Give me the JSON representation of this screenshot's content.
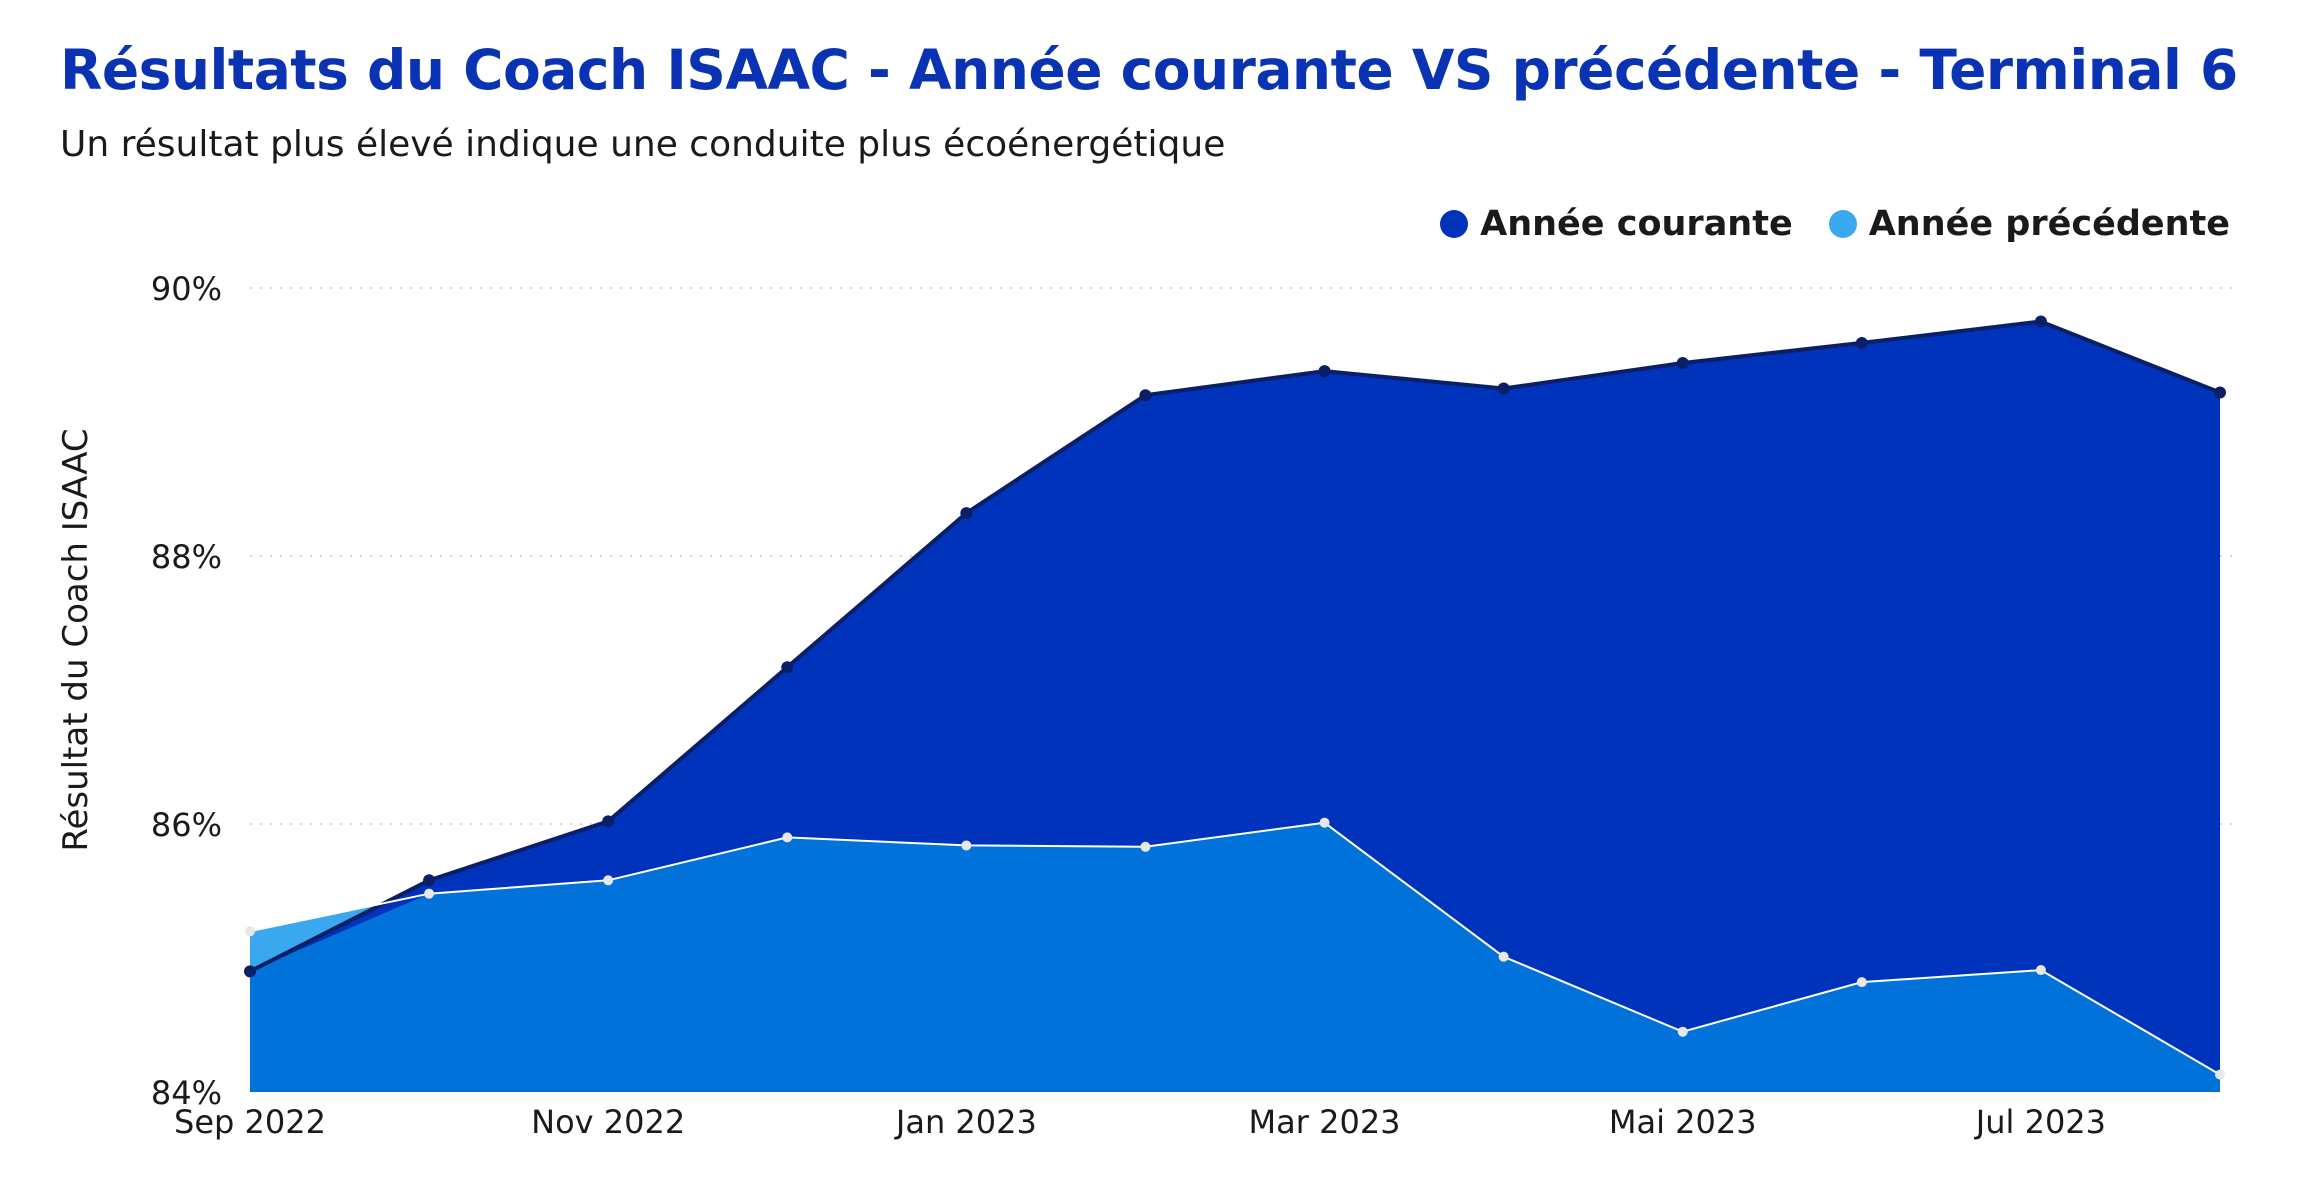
{
  "title": "Résultats du Coach ISAAC - Année courante VS précédente - Terminal 6",
  "subtitle": "Un résultat plus élevé indique une conduite plus écoénergétique",
  "colors": {
    "current_fill": "#0033BB",
    "current_line": "#0B1F66",
    "previous_fill": "#0272DB",
    "previous_fill_above": "#3AA8EE",
    "previous_line": "#FFFFFF",
    "legend_current": "#0033BB",
    "legend_previous": "#3AA8EE",
    "title": "#0A33B3"
  },
  "chart_data": {
    "type": "area",
    "ylabel": "Résultat du Coach ISAAC",
    "xlabel": "",
    "ylim": [
      84,
      90
    ],
    "yticks": [
      "84%",
      "86%",
      "88%",
      "90%"
    ],
    "ytick_values": [
      84,
      86,
      88,
      90
    ],
    "x": [
      "Sep 2022",
      "Oct 2022",
      "Nov 2022",
      "Dec 2022",
      "Jan 2023",
      "Feb 2023",
      "Mar 2023",
      "Apr 2023",
      "May 2023",
      "Jun 2023",
      "Jul 2023",
      "Aug 2023"
    ],
    "xtick_labels": [
      {
        "index": 0,
        "label": "Sep 2022"
      },
      {
        "index": 2,
        "label": "Nov 2022"
      },
      {
        "index": 4,
        "label": "Jan 2023"
      },
      {
        "index": 6,
        "label": "Mar 2023"
      },
      {
        "index": 8,
        "label": "Mai 2023"
      },
      {
        "index": 10,
        "label": "Jul 2023"
      }
    ],
    "series": [
      {
        "name": "Année courante",
        "values": [
          84.9,
          85.58,
          86.02,
          87.17,
          88.32,
          89.2,
          89.38,
          89.25,
          89.44,
          89.59,
          89.75,
          89.22
        ]
      },
      {
        "name": "Année précédente",
        "values": [
          85.2,
          85.48,
          85.58,
          85.9,
          85.84,
          85.83,
          86.01,
          85.01,
          84.45,
          84.82,
          84.91,
          84.13
        ]
      }
    ],
    "grid": true,
    "legend_position": "top-right"
  }
}
